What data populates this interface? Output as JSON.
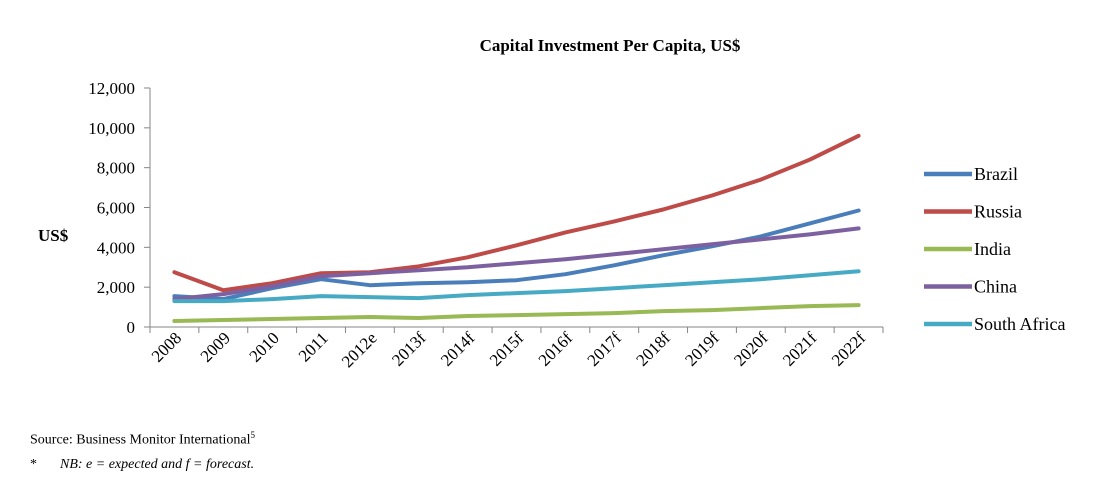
{
  "chart_data": {
    "type": "line",
    "title": "Capital Investment Per Capita, US$",
    "ylabel": "US$",
    "xlabel": "",
    "ylim": [
      0,
      12000
    ],
    "yticks": [
      "0",
      "2,000",
      "4,000",
      "6,000",
      "8,000",
      "10,000",
      "12,000"
    ],
    "ytick_values": [
      0,
      2000,
      4000,
      6000,
      8000,
      10000,
      12000
    ],
    "categories": [
      "2008",
      "2009",
      "2010",
      "2011",
      "2012e",
      "2013f",
      "2014f",
      "2015f",
      "2016f",
      "2017f",
      "2018f",
      "2019f",
      "2020f",
      "2021f",
      "2022f"
    ],
    "legend_position": "right",
    "grid": false,
    "series": [
      {
        "name": "Brazil",
        "color": "#4a7ebb",
        "values": [
          1550,
          1400,
          1950,
          2400,
          2100,
          2200,
          2250,
          2350,
          2650,
          3100,
          3600,
          4050,
          4550,
          5200,
          5850
        ]
      },
      {
        "name": "Russia",
        "color": "#be4b48",
        "values": [
          2750,
          1850,
          2200,
          2700,
          2750,
          3050,
          3500,
          4100,
          4750,
          5300,
          5900,
          6600,
          7400,
          8400,
          9600
        ]
      },
      {
        "name": "India",
        "color": "#98b954",
        "values": [
          300,
          350,
          400,
          450,
          500,
          450,
          550,
          600,
          650,
          700,
          800,
          850,
          950,
          1050,
          1100
        ]
      },
      {
        "name": "China",
        "color": "#7d60a0",
        "values": [
          1400,
          1650,
          2050,
          2550,
          2700,
          2850,
          3000,
          3200,
          3400,
          3650,
          3900,
          4150,
          4400,
          4650,
          4950
        ]
      },
      {
        "name": "South Africa",
        "color": "#46aac5",
        "values": [
          1300,
          1300,
          1400,
          1550,
          1500,
          1450,
          1600,
          1700,
          1800,
          1950,
          2100,
          2250,
          2400,
          2600,
          2800
        ]
      }
    ]
  },
  "footer": {
    "source": "Source: Business Monitor International",
    "source_sup": "5",
    "note_mark": "*",
    "note": "NB:  e = expected and f = forecast."
  }
}
